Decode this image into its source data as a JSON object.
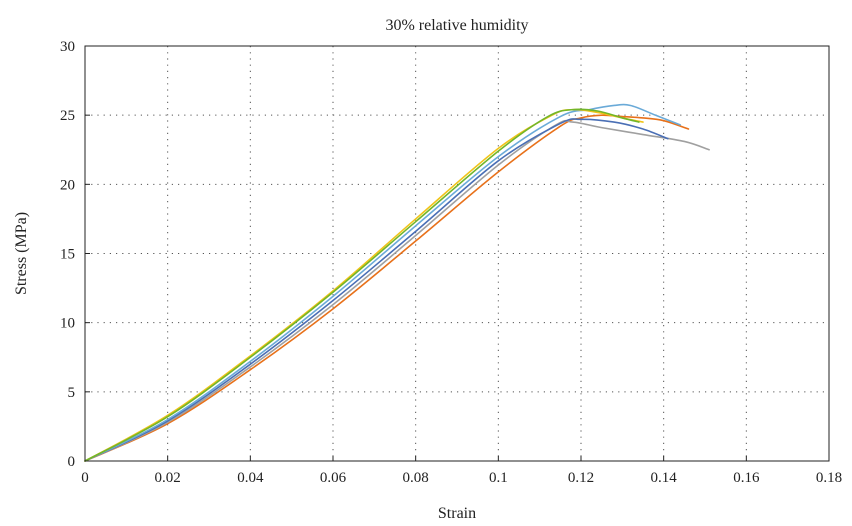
{
  "chart_data": {
    "type": "line",
    "title": "30% relative humidity",
    "xlabel": "Strain",
    "ylabel": "Stress (MPa)",
    "xlim": [
      0,
      0.18
    ],
    "ylim": [
      0,
      30
    ],
    "xticks": [
      0,
      0.02,
      0.04,
      0.06,
      0.08,
      0.1,
      0.12,
      0.14,
      0.16,
      0.18
    ],
    "xtick_labels": [
      "0",
      "0.02",
      "0.04",
      "0.06",
      "0.08",
      "0.1",
      "0.12",
      "0.14",
      "0.16",
      "0.18"
    ],
    "yticks": [
      0,
      5,
      10,
      15,
      20,
      25,
      30
    ],
    "ytick_labels": [
      "0",
      "5",
      "10",
      "15",
      "20",
      "25",
      "30"
    ],
    "grid": true,
    "legend": "none",
    "series": [
      {
        "color": "#e8711a",
        "points": [
          [
            0,
            0
          ],
          [
            0.02,
            2.7
          ],
          [
            0.04,
            6.6
          ],
          [
            0.06,
            11.0
          ],
          [
            0.08,
            15.9
          ],
          [
            0.1,
            20.9
          ],
          [
            0.115,
            24.2
          ],
          [
            0.12,
            24.8
          ],
          [
            0.125,
            25.0
          ],
          [
            0.13,
            24.9
          ],
          [
            0.135,
            24.8
          ],
          [
            0.14,
            24.6
          ],
          [
            0.146,
            24.0
          ]
        ]
      },
      {
        "color": "#a0a0a0",
        "points": [
          [
            0,
            0
          ],
          [
            0.02,
            2.8
          ],
          [
            0.04,
            6.8
          ],
          [
            0.06,
            11.3
          ],
          [
            0.08,
            16.3
          ],
          [
            0.1,
            21.4
          ],
          [
            0.114,
            24.3
          ],
          [
            0.118,
            24.5
          ],
          [
            0.125,
            24.1
          ],
          [
            0.135,
            23.6
          ],
          [
            0.145,
            23.1
          ],
          [
            0.151,
            22.5
          ]
        ]
      },
      {
        "color": "#4a6fb5",
        "points": [
          [
            0,
            0
          ],
          [
            0.02,
            2.9
          ],
          [
            0.04,
            7.0
          ],
          [
            0.06,
            11.6
          ],
          [
            0.08,
            16.6
          ],
          [
            0.1,
            21.7
          ],
          [
            0.115,
            24.4
          ],
          [
            0.12,
            24.7
          ],
          [
            0.128,
            24.5
          ],
          [
            0.135,
            24.0
          ],
          [
            0.141,
            23.3
          ]
        ]
      },
      {
        "color": "#6aaad8",
        "points": [
          [
            0,
            0
          ],
          [
            0.02,
            3.0
          ],
          [
            0.04,
            7.2
          ],
          [
            0.06,
            11.9
          ],
          [
            0.08,
            17.0
          ],
          [
            0.1,
            22.0
          ],
          [
            0.115,
            24.9
          ],
          [
            0.122,
            25.4
          ],
          [
            0.128,
            25.7
          ],
          [
            0.132,
            25.7
          ],
          [
            0.138,
            25.0
          ],
          [
            0.144,
            24.3
          ]
        ]
      },
      {
        "color": "#f0c419",
        "points": [
          [
            0,
            0
          ],
          [
            0.02,
            3.3
          ],
          [
            0.04,
            7.6
          ],
          [
            0.06,
            12.3
          ],
          [
            0.08,
            17.5
          ],
          [
            0.1,
            22.6
          ],
          [
            0.113,
            25.0
          ],
          [
            0.118,
            25.4
          ],
          [
            0.124,
            25.2
          ],
          [
            0.13,
            24.8
          ],
          [
            0.135,
            24.5
          ]
        ]
      },
      {
        "color": "#72b62a",
        "points": [
          [
            0,
            0
          ],
          [
            0.02,
            3.2
          ],
          [
            0.04,
            7.5
          ],
          [
            0.06,
            12.2
          ],
          [
            0.08,
            17.3
          ],
          [
            0.1,
            22.4
          ],
          [
            0.112,
            24.9
          ],
          [
            0.118,
            25.4
          ],
          [
            0.124,
            25.3
          ],
          [
            0.13,
            24.8
          ],
          [
            0.134,
            24.5
          ]
        ]
      }
    ]
  }
}
